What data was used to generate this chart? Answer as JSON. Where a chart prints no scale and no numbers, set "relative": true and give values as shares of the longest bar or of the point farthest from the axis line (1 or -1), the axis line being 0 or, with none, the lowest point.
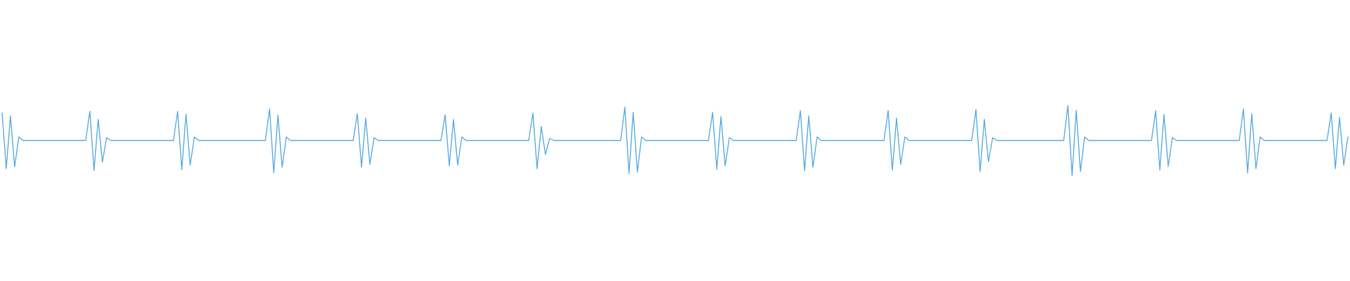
{
  "chart_data": {
    "type": "line",
    "relative": true,
    "marker": "none",
    "line_style": "solid",
    "categories": [
      null,
      null,
      null,
      null,
      null,
      null,
      null,
      null,
      null,
      null,
      null,
      null,
      null,
      null,
      null,
      null,
      null,
      null,
      null,
      null,
      null,
      null,
      null,
      null,
      null,
      null,
      null,
      null,
      null,
      null,
      null,
      null,
      null,
      null,
      null,
      null,
      null,
      null,
      null,
      null,
      null,
      null,
      null,
      null,
      null,
      null,
      null,
      null,
      null,
      null,
      null,
      null,
      null,
      null,
      null,
      null,
      null,
      null,
      null,
      null,
      null,
      null,
      null,
      null,
      null,
      null,
      null,
      null,
      null,
      null,
      null,
      null,
      null,
      null,
      null,
      null,
      null,
      null,
      null,
      null,
      null,
      null,
      null,
      null,
      null,
      null,
      null,
      null,
      null,
      null,
      null,
      null,
      null,
      null,
      null,
      null,
      null,
      null,
      null,
      null,
      null,
      null,
      null,
      null,
      null,
      null,
      null,
      null,
      null,
      null,
      null,
      null,
      null,
      null,
      null,
      null,
      null,
      null,
      null,
      null,
      null,
      null,
      null,
      null,
      null,
      null,
      null,
      null,
      null,
      null,
      null,
      null,
      null,
      null,
      null,
      null,
      null,
      null,
      null,
      null,
      null,
      null,
      null,
      null,
      null,
      null,
      null,
      null,
      null,
      null,
      null,
      null,
      null,
      null,
      null,
      null,
      null,
      null,
      null,
      null,
      null,
      null,
      null,
      null,
      null,
      null,
      null,
      null,
      null,
      null,
      null,
      null,
      null,
      null,
      null,
      null,
      null,
      null,
      null,
      null,
      null,
      null,
      null,
      null,
      null,
      null,
      null,
      null,
      null,
      null,
      null,
      null,
      null,
      null,
      null,
      null,
      null,
      null,
      null,
      null,
      null,
      null,
      null,
      null,
      null,
      null,
      null,
      null,
      null,
      null,
      null,
      null,
      null,
      null,
      null,
      null,
      null,
      null,
      null,
      null,
      null,
      null,
      null,
      null,
      null,
      null,
      null,
      null,
      null,
      null,
      null,
      null,
      null,
      null,
      null,
      null,
      null,
      null,
      null,
      null,
      null,
      null,
      null,
      null,
      null,
      null,
      null,
      null,
      null,
      null,
      null,
      null,
      null,
      null,
      null,
      null,
      null,
      null,
      null,
      null,
      null,
      null,
      null,
      null,
      null,
      null,
      null,
      null,
      null,
      null,
      null,
      null,
      null,
      null,
      null,
      null,
      null,
      null,
      null,
      null,
      null,
      null,
      null,
      null,
      null,
      null,
      null,
      null,
      null,
      null,
      null,
      null,
      null,
      null,
      null,
      null,
      null,
      null,
      null,
      null,
      null,
      null,
      null,
      null,
      null,
      null,
      null,
      null,
      null,
      null,
      null,
      null,
      null,
      null,
      null,
      null,
      null,
      null,
      null,
      null,
      null,
      null,
      null
    ],
    "series": [
      {
        "color": "#5dade2",
        "values": [
          0.89,
          0.1,
          0.85,
          0.125,
          0.55,
          0.5,
          0.5,
          0.5,
          0.5,
          0.5,
          0.5,
          0.5,
          0.5,
          0.5,
          0.5,
          0.5,
          0.5,
          0.5,
          0.5,
          0.5,
          0.5,
          0.915,
          0.075,
          0.8,
          0.19,
          0.54,
          0.5,
          0.5,
          0.5,
          0.5,
          0.5,
          0.5,
          0.5,
          0.5,
          0.5,
          0.5,
          0.5,
          0.5,
          0.5,
          0.5,
          0.5,
          0.5,
          0.915,
          0.085,
          0.875,
          0.15,
          0.55,
          0.5,
          0.5,
          0.5,
          0.5,
          0.5,
          0.5,
          0.5,
          0.5,
          0.5,
          0.5,
          0.5,
          0.5,
          0.5,
          0.5,
          0.5,
          0.5,
          0.5,
          0.95,
          0.04,
          0.86,
          0.12,
          0.55,
          0.5,
          0.5,
          0.5,
          0.5,
          0.5,
          0.5,
          0.5,
          0.5,
          0.5,
          0.5,
          0.5,
          0.5,
          0.5,
          0.5,
          0.5,
          0.5,
          0.88,
          0.12,
          0.82,
          0.16,
          0.54,
          0.5,
          0.5,
          0.5,
          0.5,
          0.5,
          0.5,
          0.5,
          0.5,
          0.5,
          0.5,
          0.5,
          0.5,
          0.5,
          0.5,
          0.5,
          0.5,
          0.865,
          0.14,
          0.8,
          0.15,
          0.55,
          0.5,
          0.5,
          0.5,
          0.5,
          0.5,
          0.5,
          0.5,
          0.5,
          0.5,
          0.5,
          0.5,
          0.5,
          0.5,
          0.5,
          0.5,
          0.5,
          0.89,
          0.1,
          0.7,
          0.3,
          0.53,
          0.5,
          0.5,
          0.5,
          0.5,
          0.5,
          0.5,
          0.5,
          0.5,
          0.5,
          0.5,
          0.5,
          0.5,
          0.5,
          0.5,
          0.5,
          0.5,
          0.5,
          0.975,
          0.03,
          0.9,
          0.05,
          0.55,
          0.5,
          0.5,
          0.5,
          0.5,
          0.5,
          0.5,
          0.5,
          0.5,
          0.5,
          0.5,
          0.5,
          0.5,
          0.5,
          0.5,
          0.5,
          0.5,
          0.9,
          0.09,
          0.84,
          0.14,
          0.54,
          0.5,
          0.5,
          0.5,
          0.5,
          0.5,
          0.5,
          0.5,
          0.5,
          0.5,
          0.5,
          0.5,
          0.5,
          0.5,
          0.5,
          0.5,
          0.5,
          0.925,
          0.07,
          0.85,
          0.12,
          0.55,
          0.5,
          0.5,
          0.5,
          0.5,
          0.5,
          0.5,
          0.5,
          0.5,
          0.5,
          0.5,
          0.5,
          0.5,
          0.5,
          0.5,
          0.5,
          0.5,
          0.925,
          0.08,
          0.82,
          0.16,
          0.55,
          0.5,
          0.5,
          0.5,
          0.5,
          0.5,
          0.5,
          0.5,
          0.5,
          0.5,
          0.5,
          0.5,
          0.5,
          0.5,
          0.5,
          0.5,
          0.5,
          0.94,
          0.06,
          0.8,
          0.2,
          0.54,
          0.5,
          0.5,
          0.5,
          0.5,
          0.5,
          0.5,
          0.5,
          0.5,
          0.5,
          0.5,
          0.5,
          0.5,
          0.5,
          0.5,
          0.5,
          0.5,
          0.5,
          1,
          0,
          0.93,
          0.06,
          0.55,
          0.5,
          0.5,
          0.5,
          0.5,
          0.5,
          0.5,
          0.5,
          0.5,
          0.5,
          0.5,
          0.5,
          0.5,
          0.5,
          0.5,
          0.5,
          0.5,
          0.925,
          0.08,
          0.87,
          0.13,
          0.54,
          0.5,
          0.5,
          0.5,
          0.5,
          0.5,
          0.5,
          0.5,
          0.5,
          0.5,
          0.5,
          0.5,
          0.5,
          0.5,
          0.5,
          0.5,
          0.5,
          0.95,
          0.04,
          0.88,
          0.1,
          0.55,
          0.5,
          0.5,
          0.5,
          0.5,
          0.5,
          0.5,
          0.5,
          0.5,
          0.5,
          0.5,
          0.5,
          0.5,
          0.5,
          0.5,
          0.5,
          0.5,
          0.89,
          0.1,
          0.83,
          0.15,
          0.55
        ]
      }
    ]
  }
}
